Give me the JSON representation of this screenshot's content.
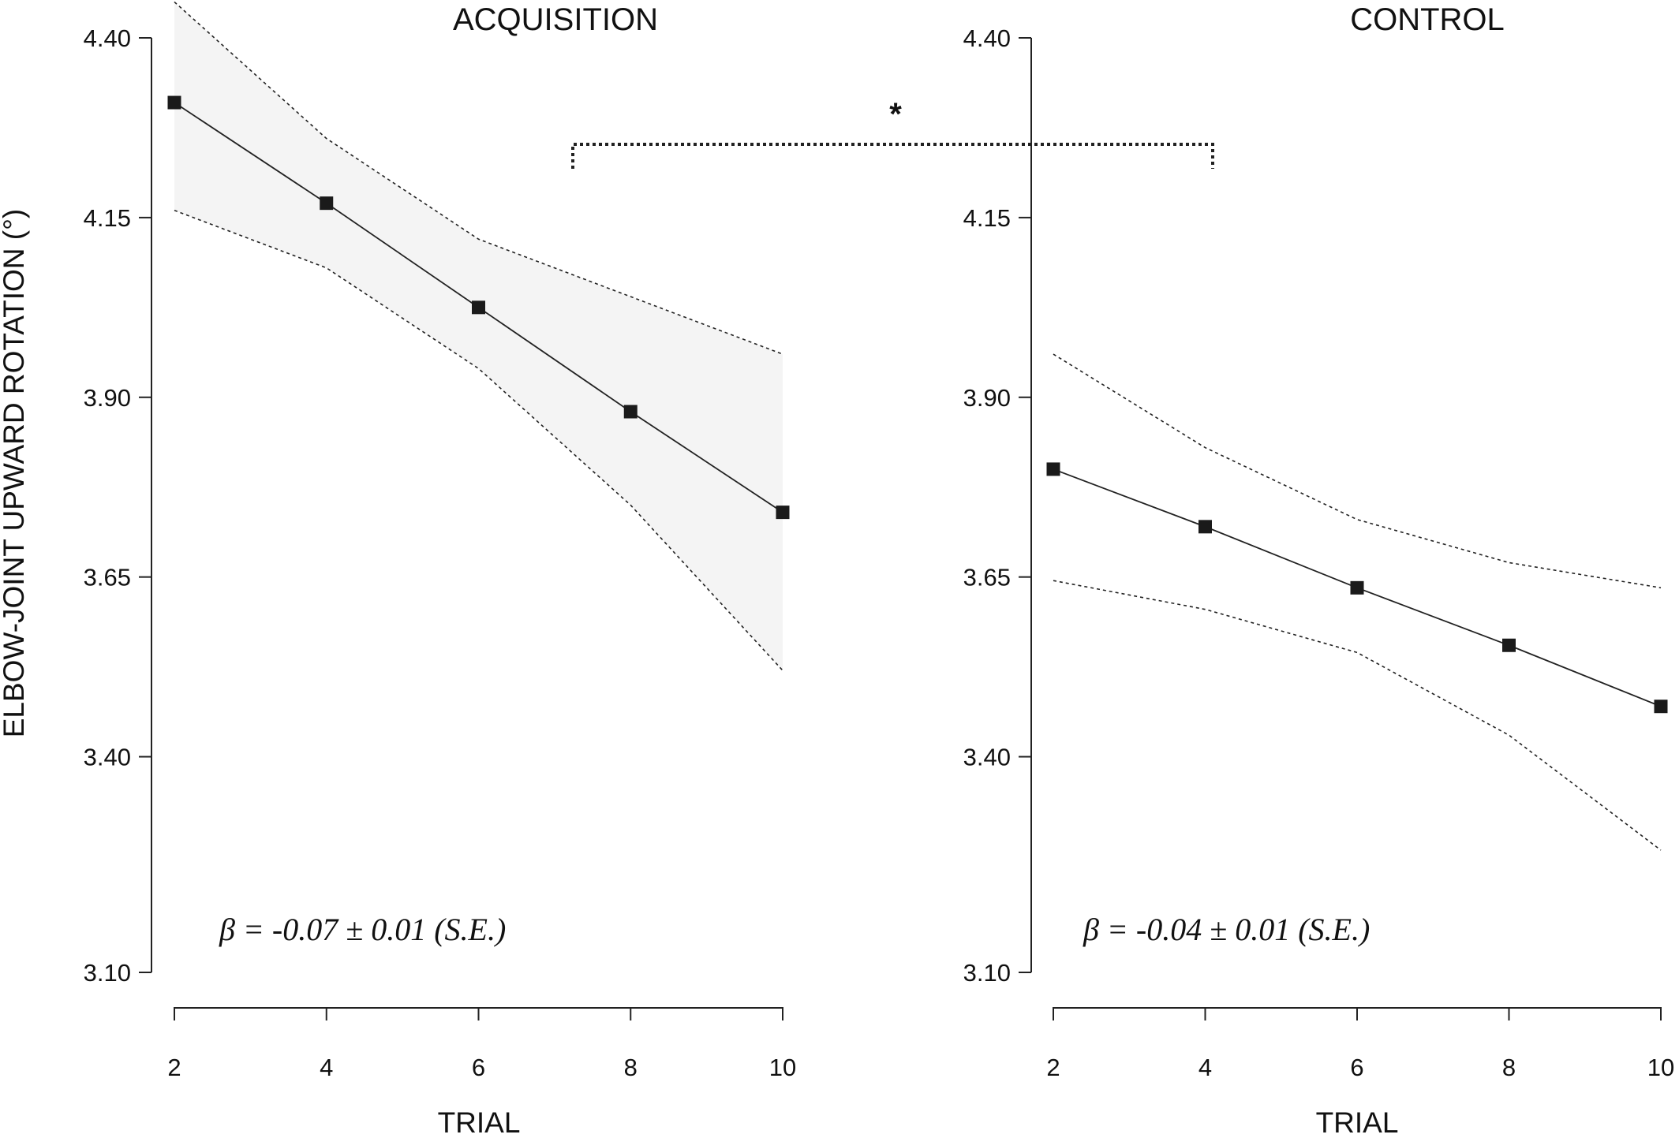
{
  "chart_data": [
    {
      "type": "line",
      "title": "ACQUISITION",
      "xlabel": "TRIAL",
      "ylabel": "ELBOW-JOINT UPWARD ROTATION (°)",
      "ylim": [
        3.1,
        4.4
      ],
      "yticks": [
        "3.10",
        "3.40",
        "3.65",
        "3.90",
        "4.15",
        "4.40"
      ],
      "xlim": [
        2,
        10
      ],
      "xticks": [
        "2",
        "4",
        "6",
        "8",
        "10"
      ],
      "x": [
        2,
        4,
        6,
        8,
        10
      ],
      "values": [
        4.31,
        4.17,
        4.025,
        3.88,
        3.74
      ],
      "ci_upper": [
        4.45,
        4.26,
        4.12,
        4.04,
        3.96
      ],
      "ci_lower": [
        4.16,
        4.08,
        3.94,
        3.75,
        3.52
      ],
      "ci_shaded": true,
      "annotation": "β = -0.07 ± 0.01 (S.E.)",
      "grid": false
    },
    {
      "type": "line",
      "title": "CONTROL",
      "xlabel": "TRIAL",
      "ylim": [
        3.1,
        4.4
      ],
      "yticks": [
        "3.10",
        "3.40",
        "3.65",
        "3.90",
        "4.15",
        "4.40"
      ],
      "xlim": [
        2,
        10
      ],
      "xticks": [
        "2",
        "4",
        "6",
        "8",
        "10"
      ],
      "x": [
        2,
        4,
        6,
        8,
        10
      ],
      "values": [
        3.8,
        3.72,
        3.635,
        3.555,
        3.47
      ],
      "ci_upper": [
        3.96,
        3.83,
        3.73,
        3.67,
        3.635
      ],
      "ci_lower": [
        3.645,
        3.605,
        3.545,
        3.43,
        3.27
      ],
      "ci_shaded": false,
      "annotation": "β = -0.04 ± 0.01 (S.E.)",
      "grid": false
    }
  ],
  "significance": {
    "label": "*"
  },
  "colors": {
    "line": "#222222",
    "marker": "#1a1a1a",
    "ci": "#222222",
    "ci_fill": "#f4f4f4"
  }
}
